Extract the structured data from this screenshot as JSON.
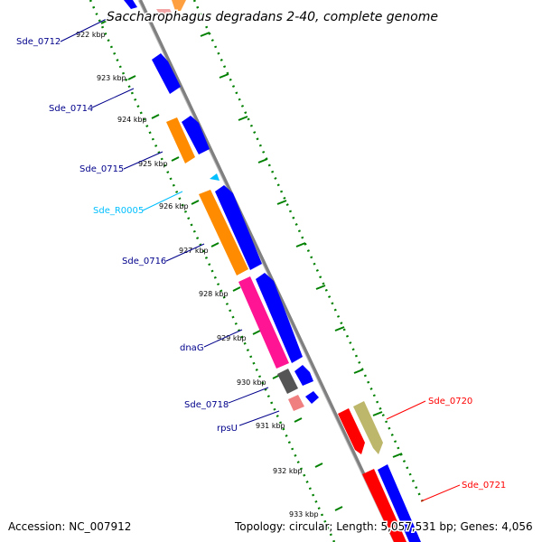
{
  "title": "Saccharophagus degradans 2-40, complete genome",
  "footer": {
    "accession": "Accession: NC_007912",
    "summary": "Topology: circular; Length: 5,057,531 bp; Genes: 4,056"
  },
  "colors": {
    "cds_forward": "#0000ff",
    "cds_reverse_a": "#ff8c00",
    "cds_reverse_b": "#ff1493",
    "rrna": "#00bfff",
    "trna": "#f08080",
    "pseudo": "#555555",
    "other_strand_a": "#ff0000",
    "other_strand_b": "#bdb76b",
    "backbone": "#808080",
    "tick": "#008000",
    "label_blue": "#00008b",
    "label_cyan": "#00bfff",
    "label_red": "#ff0000"
  },
  "ticks": [
    {
      "label": "922 kbp"
    },
    {
      "label": "923 kbp"
    },
    {
      "label": "924 kbp"
    },
    {
      "label": "925 kbp"
    },
    {
      "label": "926 kbp"
    },
    {
      "label": "927 kbp"
    },
    {
      "label": "928 kbp"
    },
    {
      "label": "929 kbp"
    },
    {
      "label": "930 kbp"
    },
    {
      "label": "931 kbp"
    },
    {
      "label": "932 kbp"
    },
    {
      "label": "933 kbp"
    }
  ],
  "gene_labels": [
    {
      "text": "Sde_0712"
    },
    {
      "text": "Sde_0714"
    },
    {
      "text": "Sde_0715"
    },
    {
      "text": "Sde_R0005"
    },
    {
      "text": "Sde_0716"
    },
    {
      "text": "dnaG"
    },
    {
      "text": "Sde_0718"
    },
    {
      "text": "rpsU"
    },
    {
      "text": "Sde_0720"
    },
    {
      "text": "Sde_0721"
    }
  ]
}
